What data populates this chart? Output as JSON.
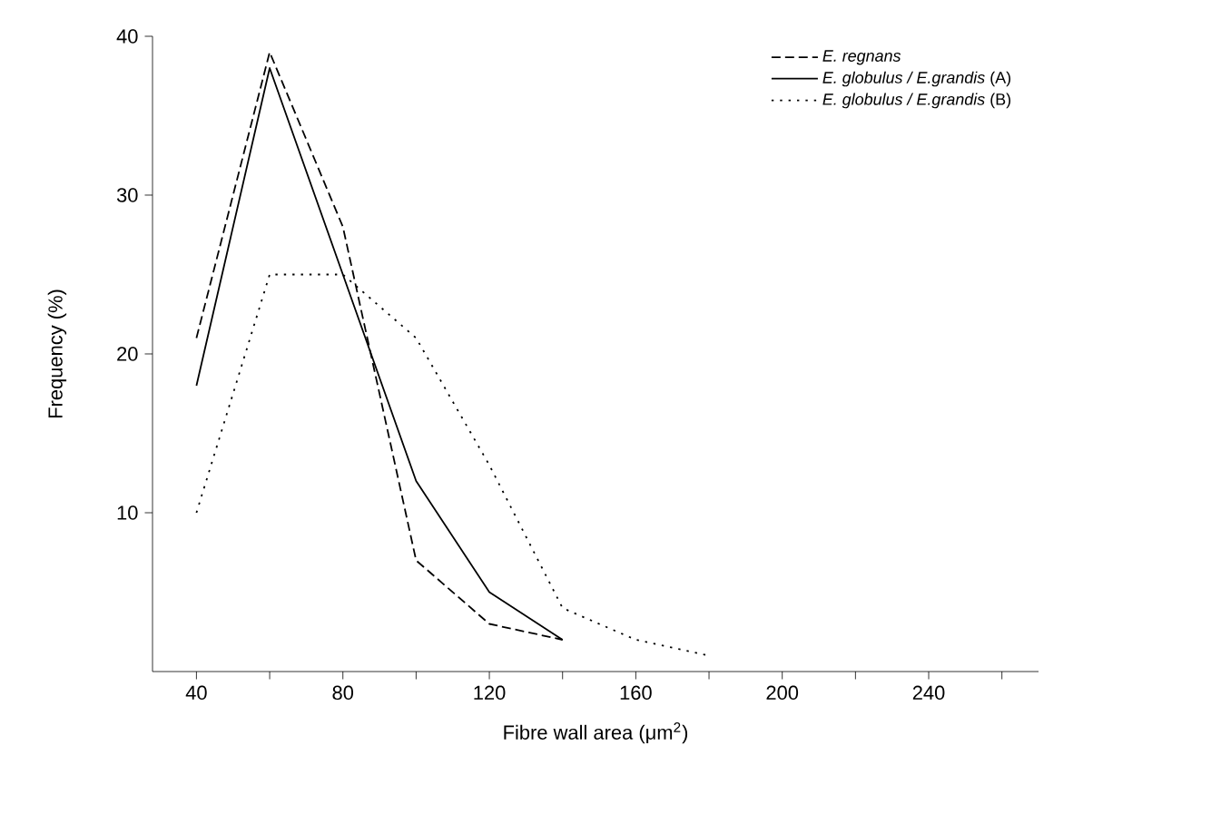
{
  "chart_data": {
    "type": "line",
    "xlabel": "Fibre wall area (μm$^{2}$)",
    "ylabel": "Frequency (%)",
    "xlim": [
      28,
      270
    ],
    "ylim": [
      0,
      40
    ],
    "xticks": [
      40,
      {
        "value": 60,
        "label": null
      },
      80,
      {
        "value": 100,
        "label": null
      },
      120,
      {
        "value": 140,
        "label": null
      },
      160,
      {
        "value": 180,
        "label": null
      },
      200,
      {
        "value": 220,
        "label": null
      },
      240,
      {
        "value": 260,
        "label": null
      }
    ],
    "yticks": [
      10,
      20,
      30,
      40
    ],
    "grid": false,
    "legend": "top right",
    "series": [
      {
        "name": "*E. regnans*",
        "color": "#000000",
        "line_style": "dashed",
        "x": [
          40,
          60,
          80,
          100,
          120,
          140
        ],
        "values": [
          21,
          39,
          28,
          7,
          3,
          2
        ]
      },
      {
        "name": "*E. globulus / E.grandis* (A)",
        "color": "#000000",
        "line_style": "solid",
        "x": [
          40,
          60,
          80,
          100,
          120,
          140
        ],
        "values": [
          18,
          38,
          25,
          12,
          5,
          2
        ]
      },
      {
        "name": "*E. globulus / E.grandis* (B)",
        "color": "#000000",
        "line_style": "dotted",
        "x": [
          40,
          60,
          80,
          100,
          120,
          140,
          160,
          180
        ],
        "values": [
          10,
          25,
          25,
          21,
          13,
          4,
          2,
          1
        ]
      }
    ]
  }
}
